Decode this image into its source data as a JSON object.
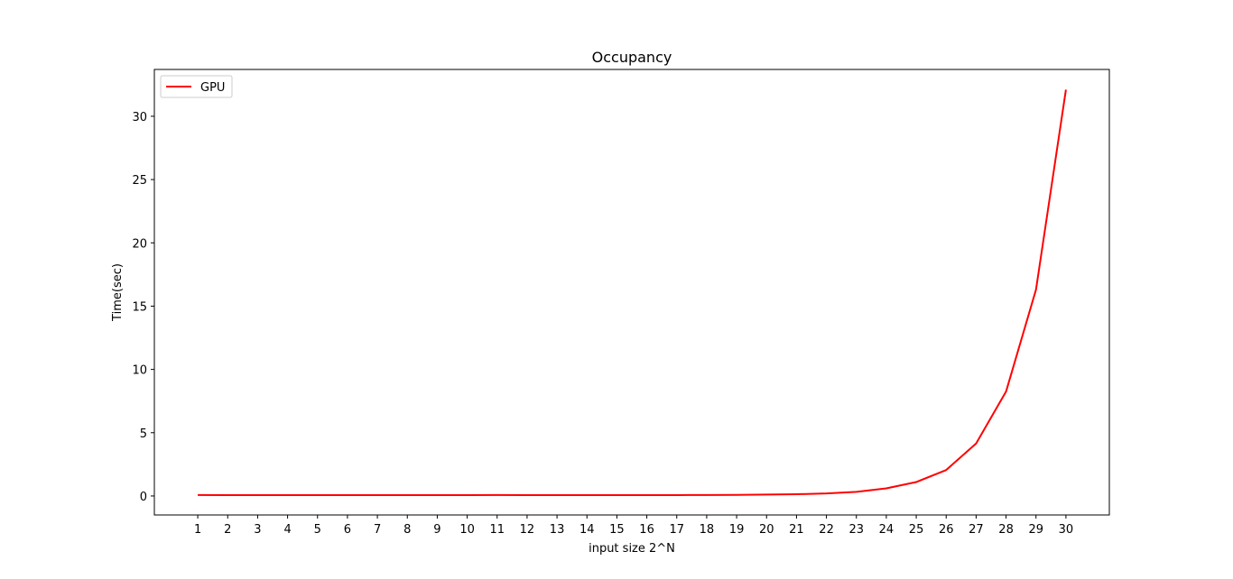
{
  "chart_data": {
    "type": "line",
    "title": "Occupancy",
    "xlabel": "input size 2^N",
    "ylabel": "Time(sec)",
    "x": [
      1,
      2,
      3,
      4,
      5,
      6,
      7,
      8,
      9,
      10,
      11,
      12,
      13,
      14,
      15,
      16,
      17,
      18,
      19,
      20,
      21,
      22,
      23,
      24,
      25,
      26,
      27,
      28,
      29,
      30
    ],
    "x_ticks": [
      1,
      2,
      3,
      4,
      5,
      6,
      7,
      8,
      9,
      10,
      11,
      12,
      13,
      14,
      15,
      16,
      17,
      18,
      19,
      20,
      21,
      22,
      23,
      24,
      25,
      26,
      27,
      28,
      29,
      30
    ],
    "y_ticks": [
      0,
      5,
      10,
      15,
      20,
      25,
      30
    ],
    "xlim": [
      -0.45,
      31.45
    ],
    "ylim": [
      -1.5,
      33.7
    ],
    "grid": false,
    "legend_position": "upper-left",
    "series": [
      {
        "name": "GPU",
        "color": "#ff0000",
        "values": [
          0.08,
          0.07,
          0.07,
          0.07,
          0.07,
          0.07,
          0.07,
          0.07,
          0.07,
          0.07,
          0.08,
          0.07,
          0.07,
          0.07,
          0.07,
          0.07,
          0.07,
          0.08,
          0.09,
          0.11,
          0.14,
          0.2,
          0.33,
          0.6,
          1.1,
          2.05,
          4.15,
          8.25,
          16.3,
          32.1
        ]
      }
    ]
  }
}
